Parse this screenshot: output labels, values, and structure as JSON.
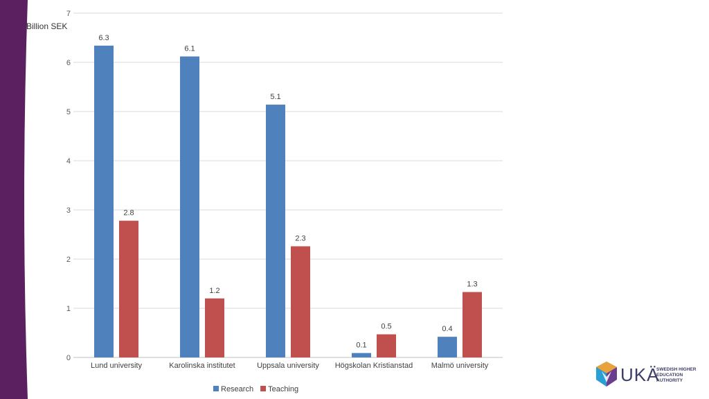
{
  "chart_data": {
    "type": "bar",
    "categories": [
      "Lund university",
      "Karolinska institutet",
      "Uppsala university",
      "Högskolan Kristianstad",
      "Malmö university"
    ],
    "series": [
      {
        "name": "Research",
        "values": [
          6.34,
          6.12,
          5.14,
          0.09,
          0.42
        ],
        "labels": [
          "6.3",
          "6.1",
          "5.1",
          "0.1",
          "0.4"
        ],
        "color": "#4f81bd"
      },
      {
        "name": "Teaching",
        "values": [
          2.78,
          1.2,
          2.26,
          0.47,
          1.33
        ],
        "labels": [
          "2.8",
          "1.2",
          "2.3",
          "0.5",
          "1.3"
        ],
        "color": "#c0504d"
      }
    ],
    "ylabel": "Billion SEK",
    "ylim": [
      0,
      7
    ],
    "yticks": [
      0,
      1,
      2,
      3,
      4,
      5,
      6,
      7
    ],
    "grid": true,
    "legend_position": "bottom"
  },
  "branding": {
    "accent_color": "#5b2060",
    "logo_word": "UKÄ",
    "logo_sub_lines": [
      "SWEDISH HIGHER",
      "EDUCATION",
      "AUTHORITY"
    ],
    "logo_colors": [
      "#e8a33a",
      "#2a9fd6",
      "#6a3d8f",
      "#3d3d6b"
    ]
  }
}
